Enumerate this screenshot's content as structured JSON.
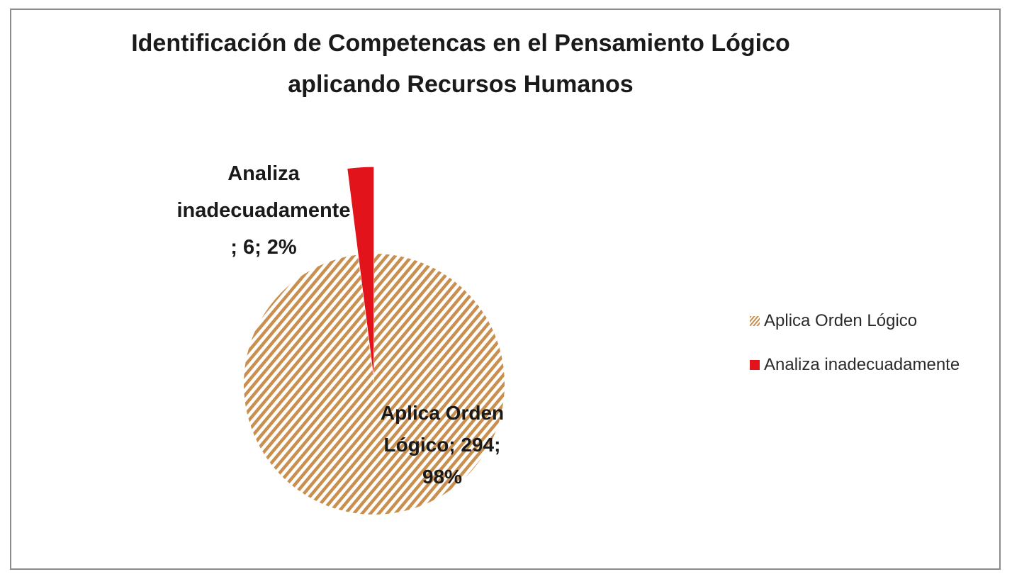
{
  "chart_data": {
    "type": "pie",
    "title_lines": [
      "Identificación de Competencas en el Pensamiento Lógico",
      "aplicando  Recursos Humanos"
    ],
    "slices": [
      {
        "name": "Aplica Orden Lógico",
        "value": 294,
        "percent": 98,
        "label_lines": [
          "Aplica Orden",
          "Lógico; 294;",
          "98%"
        ],
        "color": "#c98f4e",
        "pattern": "diagonal-stripes"
      },
      {
        "name": "Analiza inadecuadamente",
        "value": 6,
        "percent": 2,
        "label_lines": [
          "Analiza",
          "inadecuadamente",
          "; 6; 2%"
        ],
        "color": "#e3131b",
        "pattern": "solid"
      }
    ],
    "legend_position": "right"
  }
}
